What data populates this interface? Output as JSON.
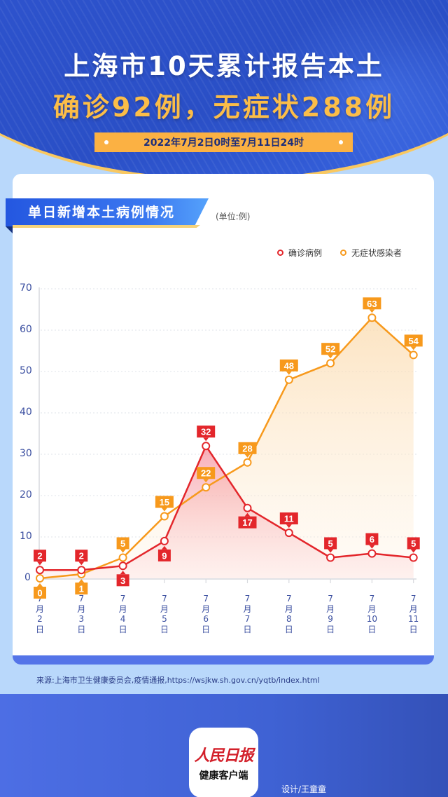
{
  "header": {
    "title_line1": "上海市10天累计报告本土",
    "title_line2": "确诊92例，无症状288例",
    "date_range": "2022年7月2日0时至7月11日24时"
  },
  "section": {
    "title": "单日新增本土病例情况",
    "unit": "(单位:例)"
  },
  "legend": {
    "confirmed": "确诊病例",
    "asymptomatic": "无症状感染者"
  },
  "colors": {
    "confirmed": "#e3262b",
    "asymptomatic": "#f7991c",
    "axis_text": "#3b4fa0",
    "brand_blue": "#2d52cc",
    "accent_yellow": "#fbb143"
  },
  "chart_data": {
    "type": "line",
    "title": "单日新增本土病例情况",
    "subtitle": "(单位:例)",
    "xlabel": "",
    "ylabel": "",
    "categories": [
      "7月2日",
      "7月3日",
      "7月4日",
      "7月5日",
      "7月6日",
      "7月7日",
      "7月8日",
      "7月9日",
      "7月10日",
      "7月11日"
    ],
    "series": [
      {
        "name": "确诊病例",
        "color": "#e3262b",
        "values": [
          2,
          2,
          3,
          9,
          32,
          17,
          11,
          5,
          6,
          5
        ]
      },
      {
        "name": "无症状感染者",
        "color": "#f7991c",
        "values": [
          0,
          1,
          5,
          15,
          22,
          28,
          48,
          52,
          63,
          54
        ]
      }
    ],
    "ylim": [
      0,
      70
    ],
    "yticks": [
      0,
      10,
      20,
      30,
      40,
      50,
      60,
      70
    ],
    "grid": true,
    "legend_position": "top-right",
    "area_fill": true
  },
  "footer": {
    "source": "来源:上海市卫生健康委员会,疫情通报,https://wsjkw.sh.gov.cn/yqtb/index.html",
    "logo_brand": "人民日报",
    "logo_sub": "健康客户端",
    "designer": "设计/王童童"
  }
}
